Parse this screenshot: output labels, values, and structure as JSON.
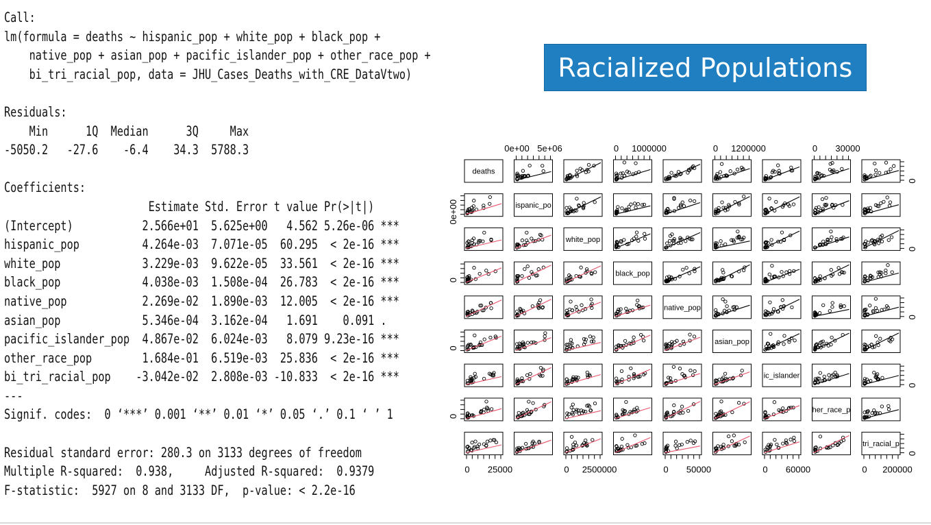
{
  "title": "Racialized Populations",
  "r_output": [
    "Call:",
    "lm(formula = deaths ~ hispanic_pop + white_pop + black_pop +",
    "    native_pop + asian_pop + pacific_islander_pop + other_race_pop +",
    "    bi_tri_racial_pop, data = JHU_Cases_Deaths_with_CRE_DataVtwo)",
    "",
    "Residuals:",
    "    Min      1Q  Median      3Q     Max",
    "-5050.2   -27.6    -6.4    34.3  5788.3",
    "",
    "Coefficients:",
    "                       Estimate Std. Error t value Pr(>|t|)    ",
    "(Intercept)           2.566e+01  5.625e+00   4.562 5.26e-06 ***",
    "hispanic_pop          4.264e-03  7.071e-05  60.295  < 2e-16 ***",
    "white_pop             3.229e-03  9.622e-05  33.561  < 2e-16 ***",
    "black_pop             4.038e-03  1.508e-04  26.783  < 2e-16 ***",
    "native_pop            2.269e-02  1.890e-03  12.005  < 2e-16 ***",
    "asian_pop             5.346e-04  3.162e-04   1.691    0.091 .  ",
    "pacific_islander_pop  4.867e-02  6.024e-03   8.079 9.23e-16 ***",
    "other_race_pop        1.684e-01  6.519e-03  25.836  < 2e-16 ***",
    "bi_tri_racial_pop    -3.042e-02  2.808e-03 -10.833  < 2e-16 ***",
    "---",
    "Signif. codes:  0 ‘***’ 0.001 ‘**’ 0.01 ‘*’ 0.05 ‘.’ 0.1 ‘ ’ 1",
    "",
    "Residual standard error: 280.3 on 3133 degrees of freedom",
    "Multiple R-squared:  0.938,\tAdjusted R-squared:  0.9379 ",
    "F-statistic:  5927 on 8 and 3133 DF,  p-value: < 2.2e-16"
  ],
  "chart_data": {
    "type": "scatter",
    "layout": "pairs-matrix",
    "variables": [
      "deaths",
      "hispanic_pop",
      "white_pop",
      "black_pop",
      "native_pop",
      "asian_pop",
      "pacific_islander_pop",
      "other_race_pop",
      "bi_tri_racial_pop"
    ],
    "diagonal_labels": [
      "deaths",
      "ispanic_po",
      "white_pop",
      "black_pop",
      "native_pop",
      "asian_pop",
      "ic_islander",
      "her_race_p",
      "tri_racial_p"
    ],
    "top_tick_labels": [
      {
        "column": 1,
        "labels": [
          "0e+00",
          "5e+06"
        ]
      },
      {
        "column": 3,
        "labels": [
          "0",
          "1000000"
        ]
      },
      {
        "column": 5,
        "labels": [
          "0",
          "1200000"
        ]
      },
      {
        "column": 7,
        "labels": [
          "0",
          "30000"
        ]
      }
    ],
    "bottom_tick_labels": [
      {
        "column": 0,
        "labels": [
          "0",
          "25000"
        ]
      },
      {
        "column": 2,
        "labels": [
          "0",
          "2500000"
        ]
      },
      {
        "column": 4,
        "labels": [
          "0",
          "50000"
        ]
      },
      {
        "column": 6,
        "labels": [
          "0",
          "60000"
        ]
      },
      {
        "column": 8,
        "labels": [
          "0",
          "200000"
        ]
      }
    ],
    "left_tick_labels": [
      {
        "row": 1,
        "labels": [
          "0e+00"
        ]
      },
      {
        "row": 3,
        "labels": [
          "0"
        ]
      },
      {
        "row": 5,
        "labels": [
          "0"
        ]
      },
      {
        "row": 7,
        "labels": [
          "0"
        ]
      }
    ],
    "right_tick_labels": [
      {
        "row": 0,
        "labels": [
          "0"
        ]
      },
      {
        "row": 2,
        "labels": [
          "0"
        ]
      },
      {
        "row": 4,
        "labels": [
          "0"
        ]
      },
      {
        "row": 6,
        "labels": [
          "0"
        ]
      },
      {
        "row": 8,
        "labels": [
          "0"
        ]
      }
    ],
    "upper_panel_line_color": "#000000",
    "lower_panel_line_color": "#e8536b",
    "point_style": "open-circle"
  }
}
